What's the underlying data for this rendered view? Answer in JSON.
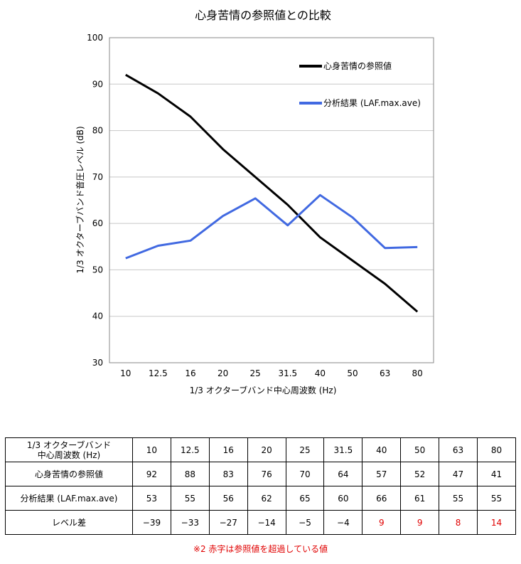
{
  "chart_data": {
    "type": "line",
    "title": "心身苦情の参照値との比較",
    "xlabel": "1/3 オクターブバンド中心周波数 (Hz)",
    "ylabel": "1/3 オクターブバンド音圧レベル (dB)",
    "categories": [
      "10",
      "12.5",
      "16",
      "20",
      "25",
      "31.5",
      "40",
      "50",
      "63",
      "80"
    ],
    "ylim": [
      30,
      100
    ],
    "yticks": [
      30,
      40,
      50,
      60,
      70,
      80,
      90,
      100
    ],
    "grid": true,
    "legend_position": "top-right",
    "series": [
      {
        "name": "心身苦情の参照値",
        "color": "#000000",
        "values": [
          92,
          88,
          83,
          76,
          70,
          64,
          57,
          52,
          47,
          41
        ]
      },
      {
        "name": "分析結果 (LAF.max.ave)",
        "color": "#4169e1",
        "values": [
          52.5,
          55.2,
          56.3,
          61.6,
          65.4,
          59.6,
          66.1,
          61.3,
          54.7,
          54.9
        ]
      }
    ]
  },
  "table": {
    "header_label": "1/3 オクターブバンド\n中心周波数 (Hz)",
    "frequencies": [
      "10",
      "12.5",
      "16",
      "20",
      "25",
      "31.5",
      "40",
      "50",
      "63",
      "80"
    ],
    "rows": [
      {
        "label": "心身苦情の参照値",
        "values": [
          "92",
          "88",
          "83",
          "76",
          "70",
          "64",
          "57",
          "52",
          "47",
          "41"
        ]
      },
      {
        "label": "分析結果 (LAF.max.ave)",
        "values": [
          "53",
          "55",
          "56",
          "62",
          "65",
          "60",
          "66",
          "61",
          "55",
          "55"
        ]
      },
      {
        "label": "レベル差",
        "values": [
          "−39",
          "−33",
          "−27",
          "−14",
          "−5",
          "−4",
          "9",
          "9",
          "8",
          "14"
        ]
      }
    ],
    "highlight_color": "#e00000"
  },
  "footnote": "※2 赤字は参照値を超過している値"
}
